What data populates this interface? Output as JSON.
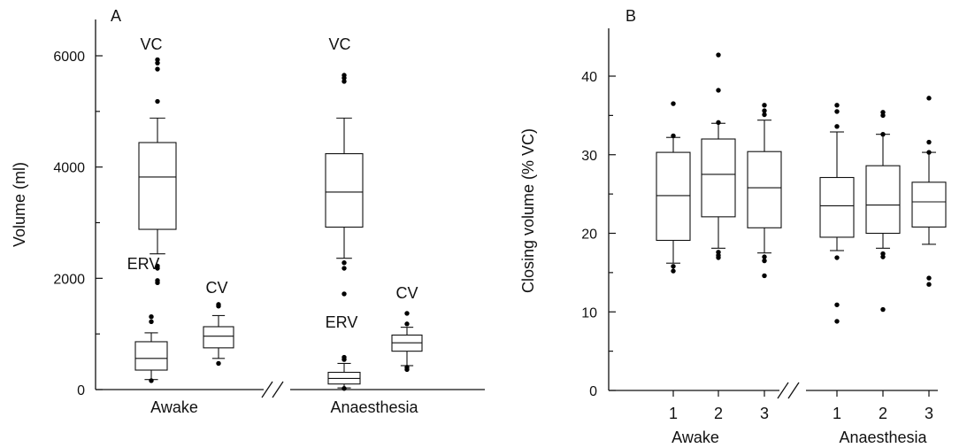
{
  "chart_data": [
    {
      "type": "box",
      "panel_label": "A",
      "ylabel": "Volume (ml)",
      "ylim": [
        0,
        6500
      ],
      "yticks": [
        0,
        2000,
        4000,
        6000
      ],
      "ytick_labels": [
        "0",
        "2000",
        "4000",
        "6000"
      ],
      "groups": [
        "Awake",
        "Anaesthesia"
      ],
      "boxes": [
        {
          "group": "Awake",
          "label": "VC",
          "q1": 2880,
          "median": 3820,
          "q3": 4440,
          "whisker_low": 2440,
          "whisker_high": 4880,
          "outliers": [
            5180,
            5760,
            5870,
            5930,
            2220,
            2180,
            1960,
            1920
          ]
        },
        {
          "group": "Awake",
          "label": "ERV",
          "q1": 350,
          "median": 560,
          "q3": 860,
          "whisker_low": 180,
          "whisker_high": 1020,
          "outliers": [
            160,
            1220,
            1310
          ]
        },
        {
          "group": "Awake",
          "label": "CV",
          "q1": 750,
          "median": 960,
          "q3": 1130,
          "whisker_low": 560,
          "whisker_high": 1330,
          "outliers": [
            470,
            1500,
            1530
          ]
        },
        {
          "group": "Anaesthesia",
          "label": "VC",
          "q1": 2920,
          "median": 3550,
          "q3": 4240,
          "whisker_low": 2360,
          "whisker_high": 4880,
          "outliers": [
            5540,
            5600,
            5650,
            2280,
            2180,
            1720
          ]
        },
        {
          "group": "Anaesthesia",
          "label": "ERV",
          "q1": 100,
          "median": 200,
          "q3": 310,
          "whisker_low": 30,
          "whisker_high": 470,
          "outliers": [
            20,
            540,
            580
          ]
        },
        {
          "group": "Anaesthesia",
          "label": "CV",
          "q1": 690,
          "median": 840,
          "q3": 980,
          "whisker_low": 430,
          "whisker_high": 1120,
          "outliers": [
            360,
            400,
            1180,
            1370
          ]
        }
      ]
    },
    {
      "type": "box",
      "panel_label": "B",
      "ylabel": "Closing volume (% VC)",
      "ylim": [
        0,
        46
      ],
      "yticks": [
        0,
        10,
        20,
        30,
        40
      ],
      "ytick_labels": [
        "0",
        "10",
        "20",
        "30",
        "40"
      ],
      "groups": [
        "Awake",
        "Anaesthesia"
      ],
      "categories": [
        "1",
        "2",
        "3"
      ],
      "boxes": [
        {
          "group": "Awake",
          "label": "1",
          "q1": 19.1,
          "median": 24.8,
          "q3": 30.3,
          "whisker_low": 16.2,
          "whisker_high": 32.2,
          "outliers": [
            15.2,
            15.8,
            32.4,
            36.5
          ]
        },
        {
          "group": "Awake",
          "label": "2",
          "q1": 22.1,
          "median": 27.5,
          "q3": 32.0,
          "whisker_low": 18.1,
          "whisker_high": 34.0,
          "outliers": [
            16.9,
            17.2,
            17.6,
            34.1,
            38.2,
            42.7
          ]
        },
        {
          "group": "Awake",
          "label": "3",
          "q1": 20.7,
          "median": 25.8,
          "q3": 30.4,
          "whisker_low": 17.5,
          "whisker_high": 34.4,
          "outliers": [
            14.6,
            16.5,
            17.0,
            35.1,
            35.6,
            36.3
          ]
        },
        {
          "group": "Anaesthesia",
          "label": "1",
          "q1": 19.5,
          "median": 23.5,
          "q3": 27.1,
          "whisker_low": 17.8,
          "whisker_high": 32.9,
          "outliers": [
            8.8,
            10.9,
            16.9,
            33.6,
            35.5,
            36.3
          ]
        },
        {
          "group": "Anaesthesia",
          "label": "2",
          "q1": 20.0,
          "median": 23.6,
          "q3": 28.6,
          "whisker_low": 18.1,
          "whisker_high": 32.6,
          "outliers": [
            10.3,
            17.0,
            17.4,
            32.6,
            35.0,
            35.4
          ]
        },
        {
          "group": "Anaesthesia",
          "label": "3",
          "q1": 20.8,
          "median": 24.0,
          "q3": 26.5,
          "whisker_low": 18.6,
          "whisker_high": 30.3,
          "outliers": [
            13.5,
            14.3,
            30.3,
            31.6,
            37.2
          ]
        }
      ]
    }
  ]
}
